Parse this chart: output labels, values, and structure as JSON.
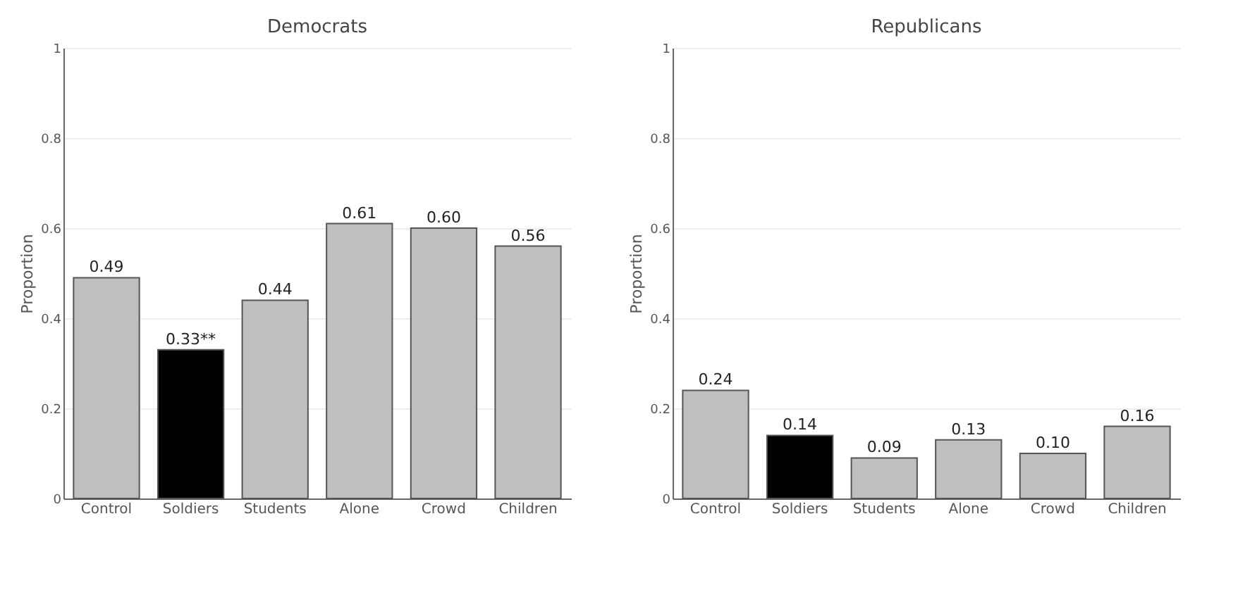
{
  "chart_data": [
    {
      "type": "bar",
      "title": "Democrats",
      "ylabel": "Proportion",
      "categories": [
        "Control",
        "Soldiers",
        "Students",
        "Alone",
        "Crowd",
        "Children"
      ],
      "values": [
        0.49,
        0.33,
        0.44,
        0.61,
        0.6,
        0.56
      ],
      "value_labels": [
        "0.49",
        "0.33**",
        "0.44",
        "0.61",
        "0.60",
        "0.56"
      ],
      "colors": [
        "#bfbfbf",
        "#000000",
        "#bfbfbf",
        "#bfbfbf",
        "#bfbfbf",
        "#bfbfbf"
      ],
      "ylim": [
        0,
        1
      ],
      "yticks": [
        0,
        0.2,
        0.4,
        0.6,
        0.8,
        1
      ],
      "grid": "y"
    },
    {
      "type": "bar",
      "title": "Republicans",
      "ylabel": "Proportion",
      "categories": [
        "Control",
        "Soldiers",
        "Students",
        "Alone",
        "Crowd",
        "Children"
      ],
      "values": [
        0.24,
        0.14,
        0.09,
        0.13,
        0.1,
        0.16
      ],
      "value_labels": [
        "0.24",
        "0.14",
        "0.09",
        "0.13",
        "0.10",
        "0.16"
      ],
      "colors": [
        "#bfbfbf",
        "#000000",
        "#bfbfbf",
        "#bfbfbf",
        "#bfbfbf",
        "#bfbfbf"
      ],
      "ylim": [
        0,
        1
      ],
      "yticks": [
        0,
        0.2,
        0.4,
        0.6,
        0.8,
        1
      ],
      "grid": "y"
    }
  ]
}
